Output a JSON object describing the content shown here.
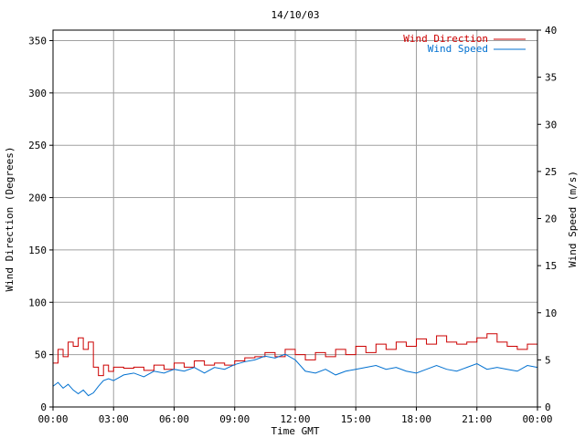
{
  "chart_data": {
    "type": "line",
    "title": "14/10/03",
    "xlabel": "Time GMT",
    "ylabel_left": "Wind Direction (Degrees)",
    "ylabel_right": "Wind Speed (m/s)",
    "x_range_hours": [
      0,
      24
    ],
    "x_ticks": [
      "00:00",
      "03:00",
      "06:00",
      "09:00",
      "12:00",
      "15:00",
      "18:00",
      "21:00",
      "00:00"
    ],
    "ylim_left": [
      0,
      360
    ],
    "y_ticks_left": [
      "0",
      "50",
      "100",
      "150",
      "200",
      "250",
      "300",
      "350"
    ],
    "ylim_right": [
      0,
      40
    ],
    "y_ticks_right": [
      "0",
      "5",
      "10",
      "15",
      "20",
      "25",
      "30",
      "35",
      "40"
    ],
    "grid": true,
    "legend": "top-right",
    "series": [
      {
        "name": "Wind Direction",
        "color": "#cc0000",
        "axis": "left",
        "style": "step",
        "x_hours": [
          0,
          0.25,
          0.5,
          0.75,
          1.0,
          1.25,
          1.5,
          1.75,
          2.0,
          2.25,
          2.5,
          2.75,
          3.0,
          3.5,
          4.0,
          4.5,
          5.0,
          5.5,
          6.0,
          6.5,
          7.0,
          7.5,
          8.0,
          8.5,
          9.0,
          9.5,
          10.0,
          10.5,
          11.0,
          11.5,
          12.0,
          12.5,
          13.0,
          13.5,
          14.0,
          14.5,
          15.0,
          15.5,
          16.0,
          16.5,
          17.0,
          17.5,
          18.0,
          18.5,
          19.0,
          19.5,
          20.0,
          20.5,
          21.0,
          21.5,
          22.0,
          22.5,
          23.0,
          23.5,
          24.0
        ],
        "values": [
          42,
          55,
          48,
          62,
          58,
          66,
          55,
          62,
          38,
          30,
          40,
          34,
          38,
          37,
          38,
          35,
          40,
          36,
          42,
          38,
          44,
          40,
          42,
          40,
          44,
          47,
          48,
          52,
          48,
          55,
          50,
          45,
          52,
          48,
          55,
          50,
          58,
          52,
          60,
          55,
          62,
          58,
          65,
          60,
          68,
          62,
          60,
          62,
          66,
          70,
          62,
          58,
          55,
          60,
          52
        ]
      },
      {
        "name": "Wind Speed",
        "color": "#0070d0",
        "axis": "right",
        "style": "line",
        "x_hours": [
          0,
          0.25,
          0.5,
          0.75,
          1.0,
          1.25,
          1.5,
          1.75,
          2.0,
          2.25,
          2.5,
          2.75,
          3.0,
          3.5,
          4.0,
          4.5,
          5.0,
          5.5,
          6.0,
          6.5,
          7.0,
          7.5,
          8.0,
          8.5,
          9.0,
          9.5,
          10.0,
          10.5,
          11.0,
          11.5,
          12.0,
          12.5,
          13.0,
          13.5,
          14.0,
          14.5,
          15.0,
          15.5,
          16.0,
          16.5,
          17.0,
          17.5,
          18.0,
          18.5,
          19.0,
          19.5,
          20.0,
          20.5,
          21.0,
          21.5,
          22.0,
          22.5,
          23.0,
          23.5,
          24.0
        ],
        "values": [
          2.2,
          2.6,
          2.0,
          2.4,
          1.8,
          1.4,
          1.8,
          1.2,
          1.5,
          2.2,
          2.8,
          3.0,
          2.8,
          3.4,
          3.6,
          3.2,
          3.8,
          3.6,
          4.0,
          3.8,
          4.2,
          3.6,
          4.2,
          4.0,
          4.5,
          4.8,
          5.0,
          5.4,
          5.2,
          5.6,
          5.0,
          3.8,
          3.6,
          4.0,
          3.4,
          3.8,
          4.0,
          4.2,
          4.4,
          4.0,
          4.2,
          3.8,
          3.6,
          4.0,
          4.4,
          4.0,
          3.8,
          4.2,
          4.6,
          4.0,
          4.2,
          4.0,
          3.8,
          4.4,
          4.2
        ]
      }
    ]
  }
}
